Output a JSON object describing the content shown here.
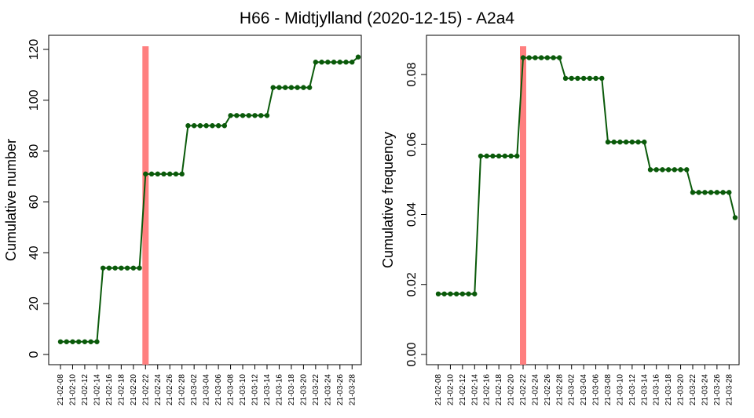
{
  "title": "H66 - Midtjylland (2020-12-15) - A2a4",
  "colors": {
    "line": "#0a5a0a",
    "highlight": "#ff7f7f",
    "axis": "#000000"
  },
  "chart_data": [
    {
      "type": "line",
      "xlabel": "",
      "ylabel": "Cumulative number",
      "ylim": [
        0,
        120
      ],
      "yticks": [
        0,
        20,
        40,
        60,
        80,
        100,
        120
      ],
      "ytick_labels": [
        "0",
        "20",
        "40",
        "60",
        "80",
        "100",
        "120"
      ],
      "x_tick_labels": [
        "21-02-08",
        "21-02-10",
        "21-02-12",
        "21-02-14",
        "21-02-16",
        "21-02-18",
        "21-02-20",
        "21-02-22",
        "21-02-24",
        "21-02-26",
        "21-02-28",
        "21-03-02",
        "21-03-04",
        "21-03-06",
        "21-03-08",
        "21-03-10",
        "21-03-12",
        "21-03-14",
        "21-03-16",
        "21-03-18",
        "21-03-20",
        "21-03-22",
        "21-03-24",
        "21-03-26",
        "21-03-28"
      ],
      "highlight_x": "21-02-22",
      "grid": false,
      "x": [
        "21-02-08",
        "21-02-09",
        "21-02-10",
        "21-02-11",
        "21-02-12",
        "21-02-13",
        "21-02-14",
        "21-02-15",
        "21-02-16",
        "21-02-17",
        "21-02-18",
        "21-02-19",
        "21-02-20",
        "21-02-21",
        "21-02-22",
        "21-02-23",
        "21-02-24",
        "21-02-25",
        "21-02-26",
        "21-02-27",
        "21-02-28",
        "21-03-01",
        "21-03-02",
        "21-03-03",
        "21-03-04",
        "21-03-05",
        "21-03-06",
        "21-03-07",
        "21-03-08",
        "21-03-09",
        "21-03-10",
        "21-03-11",
        "21-03-12",
        "21-03-13",
        "21-03-14",
        "21-03-15",
        "21-03-16",
        "21-03-17",
        "21-03-18",
        "21-03-19",
        "21-03-20",
        "21-03-21",
        "21-03-22",
        "21-03-23",
        "21-03-24",
        "21-03-25",
        "21-03-26",
        "21-03-27",
        "21-03-28",
        "21-03-29"
      ],
      "values": [
        5,
        5,
        5,
        5,
        5,
        5,
        5,
        34,
        34,
        34,
        34,
        34,
        34,
        34,
        71,
        71,
        71,
        71,
        71,
        71,
        71,
        90,
        90,
        90,
        90,
        90,
        90,
        90,
        94,
        94,
        94,
        94,
        94,
        94,
        94,
        105,
        105,
        105,
        105,
        105,
        105,
        105,
        115,
        115,
        115,
        115,
        115,
        115,
        115,
        117
      ]
    },
    {
      "type": "line",
      "xlabel": "",
      "ylabel": "Cumulative frequency",
      "ylim": [
        0,
        0.085
      ],
      "yticks": [
        0,
        0.02,
        0.04,
        0.06,
        0.08
      ],
      "ytick_labels": [
        "0.00",
        "0.02",
        "0.04",
        "0.06",
        "0.08"
      ],
      "x_tick_labels": [
        "21-02-08",
        "21-02-10",
        "21-02-12",
        "21-02-14",
        "21-02-16",
        "21-02-18",
        "21-02-20",
        "21-02-22",
        "21-02-24",
        "21-02-26",
        "21-02-28",
        "21-03-02",
        "21-03-04",
        "21-03-06",
        "21-03-08",
        "21-03-10",
        "21-03-12",
        "21-03-14",
        "21-03-16",
        "21-03-18",
        "21-03-20",
        "21-03-22",
        "21-03-24",
        "21-03-26",
        "21-03-28"
      ],
      "highlight_x": "21-02-22",
      "grid": false,
      "x": [
        "21-02-08",
        "21-02-09",
        "21-02-10",
        "21-02-11",
        "21-02-12",
        "21-02-13",
        "21-02-14",
        "21-02-15",
        "21-02-16",
        "21-02-17",
        "21-02-18",
        "21-02-19",
        "21-02-20",
        "21-02-21",
        "21-02-22",
        "21-02-23",
        "21-02-24",
        "21-02-25",
        "21-02-26",
        "21-02-27",
        "21-02-28",
        "21-03-01",
        "21-03-02",
        "21-03-03",
        "21-03-04",
        "21-03-05",
        "21-03-06",
        "21-03-07",
        "21-03-08",
        "21-03-09",
        "21-03-10",
        "21-03-11",
        "21-03-12",
        "21-03-13",
        "21-03-14",
        "21-03-15",
        "21-03-16",
        "21-03-17",
        "21-03-18",
        "21-03-19",
        "21-03-20",
        "21-03-21",
        "21-03-22",
        "21-03-23",
        "21-03-24",
        "21-03-25",
        "21-03-26",
        "21-03-27",
        "21-03-28",
        "21-03-29"
      ],
      "values": [
        0.0173,
        0.0173,
        0.0173,
        0.0173,
        0.0173,
        0.0173,
        0.0173,
        0.0567,
        0.0567,
        0.0567,
        0.0567,
        0.0567,
        0.0567,
        0.0567,
        0.0848,
        0.0848,
        0.0848,
        0.0848,
        0.0848,
        0.0848,
        0.0848,
        0.0789,
        0.0789,
        0.0789,
        0.0789,
        0.0789,
        0.0789,
        0.0789,
        0.0607,
        0.0607,
        0.0607,
        0.0607,
        0.0607,
        0.0607,
        0.0607,
        0.0528,
        0.0528,
        0.0528,
        0.0528,
        0.0528,
        0.0528,
        0.0528,
        0.0463,
        0.0463,
        0.0463,
        0.0463,
        0.0463,
        0.0463,
        0.0463,
        0.0391
      ]
    }
  ]
}
